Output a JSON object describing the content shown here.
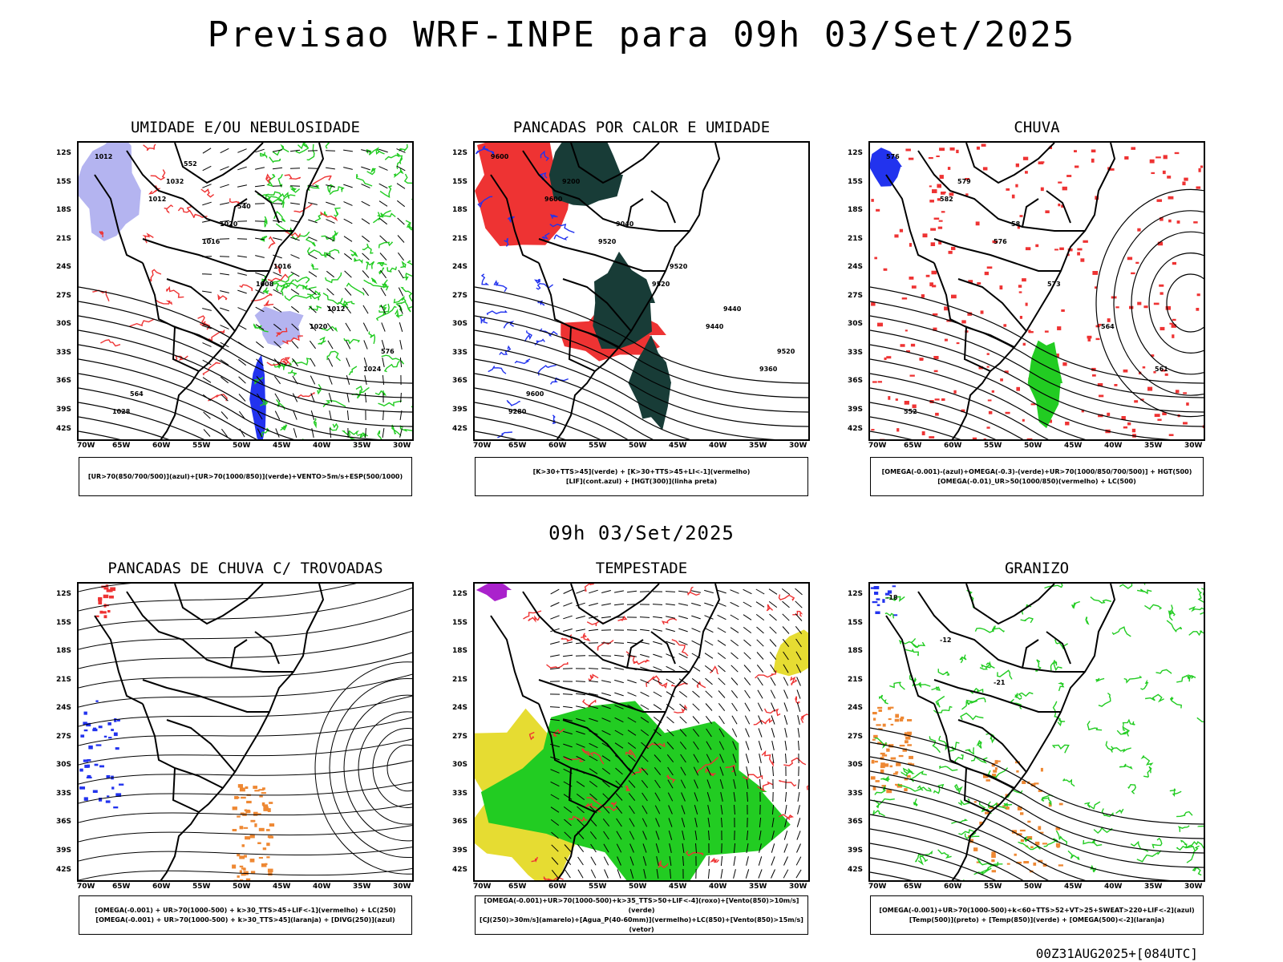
{
  "header": {
    "title": "Previsao WRF-INPE  para 09h 03/Set/2025",
    "subtitle": "09h 03/Set/2025",
    "footer": "00Z31AUG2025+[084UTC]"
  },
  "axes": {
    "lat_labels": [
      "12S",
      "15S",
      "18S",
      "21S",
      "24S",
      "27S",
      "30S",
      "33S",
      "36S",
      "39S",
      "42S"
    ],
    "lon_labels": [
      "70W",
      "65W",
      "60W",
      "55W",
      "50W",
      "45W",
      "40W",
      "35W",
      "30W"
    ]
  },
  "panels": [
    {
      "title": "UMIDADE E/OU NEBULOSIDADE",
      "legend": [
        "[UR>70(850/700/500)](azul)+[UR>70(1000/850)](verde)+VENTO>5m/s+ESP(500/1000)"
      ],
      "style": "humidity",
      "contour_labels": [
        "1012",
        "1012",
        "1016",
        "1008",
        "1020",
        "1024",
        "1028",
        "1032",
        "1020",
        "1016",
        "1012",
        "576",
        "564",
        "552",
        "540"
      ]
    },
    {
      "title": "PANCADAS POR CALOR E UMIDADE",
      "legend": [
        "[K>30+TTS>45](verde) + [K>30+TTS>45+LI<-1](vermelho)",
        "[LIF](cont.azul) + [HGT(300)](linha preta)"
      ],
      "style": "heat",
      "contour_labels": [
        "9600",
        "9600",
        "9520",
        "9520",
        "9440",
        "9360",
        "9280",
        "9200",
        "9040",
        "9520",
        "9440",
        "9520",
        "9600"
      ]
    },
    {
      "title": "CHUVA",
      "legend": [
        "[OMEGA(-0.001)-(azul)+OMEGA(-0.3)-(verde)+UR>70(1000/850/700/500)] + HGT(500)",
        "[OMEGA(-0.01)_UR>50(1000/850)(vermelho) + LC(500)"
      ],
      "style": "rain",
      "contour_labels": [
        "576",
        "582",
        "576",
        "573",
        "564",
        "561",
        "552",
        "579",
        "58"
      ]
    },
    {
      "title": "PANCADAS DE CHUVA C/ TROVOADAS",
      "legend": [
        "[OMEGA(-0.001) + UR>70(1000-500) + k>30_TTS>45+LIF<-1](vermelho) + LC(250)",
        "[OMEGA(-0.001) + UR>70(1000-500) + k>30_TTS>45](laranja) + [DIVG(250)](azul)"
      ],
      "style": "thunder",
      "contour_labels": []
    },
    {
      "title": "TEMPESTADE",
      "legend": [
        "[OMEGA(-0.001)+UR>70(1000-500)+k>35_TTS>50+LIF<-4](roxo)+[Vento(850)>10m/s](verde)",
        "[CJ(250)>30m/s](amarelo)+[Agua_P(40-60mm)](vermelho)+LC(850)+[Vento(850)>15m/s](vetor)"
      ],
      "style": "storm",
      "contour_labels": []
    },
    {
      "title": "GRANIZO",
      "legend": [
        "[OMEGA(-0.001)+UR>70(1000-500)+k<60+TTS>52+VT>25+SWEAT>220+LIF<-2](azul)",
        "[Temp(500)](preto) + [Temp(850)](verde) + [OMEGA(500)<-2](laranja)"
      ],
      "style": "hail",
      "contour_labels": [
        "-18",
        "-12",
        "-21"
      ]
    }
  ],
  "colors": {
    "blue": "#2233ee",
    "light_blue": "#b4b4f0",
    "green": "#22cc22",
    "red": "#ee3333",
    "dark_teal": "#183c37",
    "yellow": "#e6dc32",
    "orange": "#ee8833",
    "purple": "#aa22cc"
  }
}
